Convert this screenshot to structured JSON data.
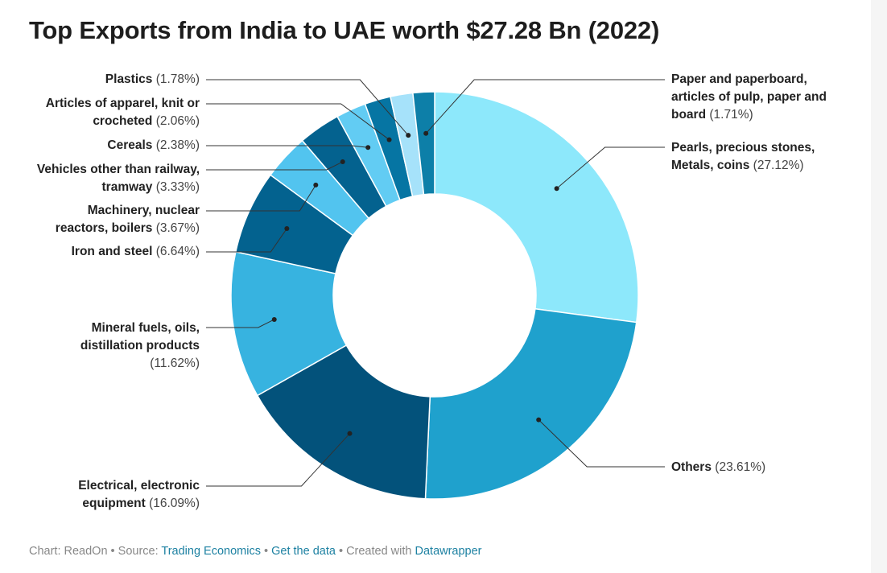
{
  "title": "Top Exports from India to UAE worth $27.28 Bn (2022)",
  "chart_data": {
    "type": "pie",
    "title": "Top Exports from India to UAE worth $27.28 Bn (2022)",
    "donut": true,
    "slices": [
      {
        "label": "Pearls, precious stones, Metals, coins",
        "pct_text": "(27.12%)",
        "value": 27.12,
        "color": "#8de8fb"
      },
      {
        "label": "Others",
        "pct_text": "(23.61%)",
        "value": 23.61,
        "color": "#1fa1cd"
      },
      {
        "label": "Electrical, electronic equipment",
        "pct_text": "(16.09%)",
        "value": 16.09,
        "color": "#03527b"
      },
      {
        "label": "Mineral fuels, oils, distillation products",
        "pct_text": "(11.62%)",
        "value": 11.62,
        "color": "#37b3e0"
      },
      {
        "label": "Iron and steel",
        "pct_text": "(6.64%)",
        "value": 6.64,
        "color": "#03628f"
      },
      {
        "label": "Machinery, nuclear reactors, boilers",
        "pct_text": "(3.67%)",
        "value": 3.67,
        "color": "#52c4ef"
      },
      {
        "label": "Vehicles other than railway, tramway",
        "pct_text": "(3.33%)",
        "value": 3.33,
        "color": "#04628f"
      },
      {
        "label": "Cereals",
        "pct_text": "(2.38%)",
        "value": 2.38,
        "color": "#62ccf3"
      },
      {
        "label": "Articles of apparel, knit or crocheted",
        "pct_text": "(2.06%)",
        "value": 2.06,
        "color": "#0675a3"
      },
      {
        "label": "Plastics",
        "pct_text": "(1.78%)",
        "value": 1.78,
        "color": "#a6e2fa"
      },
      {
        "label": "Paper and paperboard, articles of pulp, paper and board",
        "pct_text": "(1.71%)",
        "value": 1.71,
        "color": "#0d7fa8"
      }
    ]
  },
  "footer": {
    "chart_by": "Chart: ReadOn",
    "sep1": " • Source: ",
    "source": "Trading Economics",
    "sep2": " • ",
    "get_data": "Get the data",
    "sep3": " • Created with ",
    "tool": "Datawrapper"
  }
}
